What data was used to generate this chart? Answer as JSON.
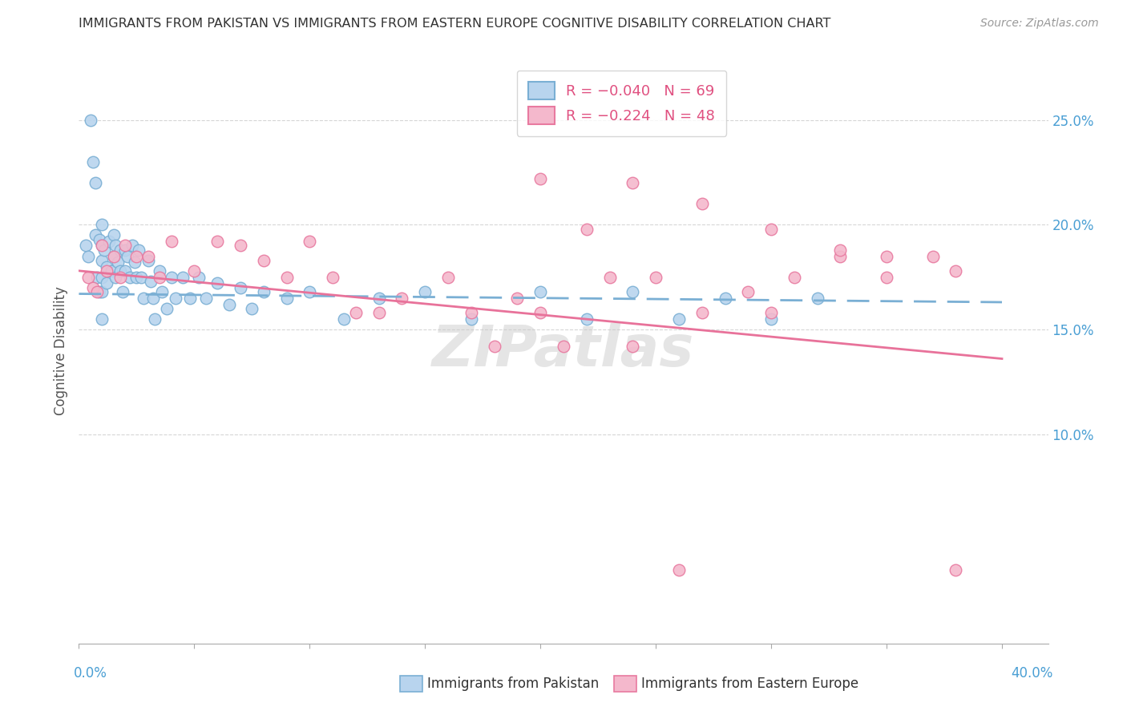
{
  "title": "IMMIGRANTS FROM PAKISTAN VS IMMIGRANTS FROM EASTERN EUROPE COGNITIVE DISABILITY CORRELATION CHART",
  "source": "Source: ZipAtlas.com",
  "ylabel": "Cognitive Disability",
  "xlim": [
    0.0,
    0.42
  ],
  "ylim": [
    0.0,
    0.28
  ],
  "y_ticks": [
    0.1,
    0.15,
    0.2,
    0.25
  ],
  "y_tick_labels": [
    "10.0%",
    "15.0%",
    "20.0%",
    "25.0%"
  ],
  "x_ticks": [
    0.0,
    0.05,
    0.1,
    0.15,
    0.2,
    0.25,
    0.3,
    0.35,
    0.4
  ],
  "pakistan_color": "#b8d4ee",
  "pakistan_edge_color": "#7aafd4",
  "eastern_europe_color": "#f4b8cc",
  "eastern_europe_edge_color": "#e87aa0",
  "trendline_pakistan_color": "#7aafd4",
  "trendline_eastern_color": "#e8729a",
  "watermark": "ZIPatlas",
  "pak_trendline_x": [
    0.0,
    0.4
  ],
  "pak_trendline_y": [
    0.167,
    0.163
  ],
  "east_trendline_x": [
    0.0,
    0.4
  ],
  "east_trendline_y": [
    0.178,
    0.136
  ],
  "pakistan_scatter_x": [
    0.003,
    0.004,
    0.005,
    0.006,
    0.007,
    0.007,
    0.008,
    0.009,
    0.009,
    0.01,
    0.01,
    0.01,
    0.01,
    0.01,
    0.01,
    0.011,
    0.012,
    0.012,
    0.013,
    0.014,
    0.015,
    0.015,
    0.016,
    0.016,
    0.017,
    0.018,
    0.018,
    0.019,
    0.02,
    0.02,
    0.021,
    0.022,
    0.023,
    0.024,
    0.025,
    0.026,
    0.027,
    0.028,
    0.03,
    0.031,
    0.032,
    0.033,
    0.035,
    0.036,
    0.038,
    0.04,
    0.042,
    0.045,
    0.048,
    0.052,
    0.055,
    0.06,
    0.065,
    0.07,
    0.075,
    0.08,
    0.09,
    0.1,
    0.115,
    0.13,
    0.15,
    0.17,
    0.2,
    0.22,
    0.24,
    0.26,
    0.28,
    0.3,
    0.32
  ],
  "pakistan_scatter_y": [
    0.19,
    0.185,
    0.25,
    0.23,
    0.22,
    0.195,
    0.175,
    0.193,
    0.168,
    0.2,
    0.19,
    0.183,
    0.175,
    0.168,
    0.155,
    0.188,
    0.18,
    0.172,
    0.192,
    0.178,
    0.195,
    0.185,
    0.175,
    0.19,
    0.182,
    0.188,
    0.178,
    0.168,
    0.188,
    0.178,
    0.185,
    0.175,
    0.19,
    0.182,
    0.175,
    0.188,
    0.175,
    0.165,
    0.183,
    0.173,
    0.165,
    0.155,
    0.178,
    0.168,
    0.16,
    0.175,
    0.165,
    0.175,
    0.165,
    0.175,
    0.165,
    0.172,
    0.162,
    0.17,
    0.16,
    0.168,
    0.165,
    0.168,
    0.155,
    0.165,
    0.168,
    0.155,
    0.168,
    0.155,
    0.168,
    0.155,
    0.165,
    0.155,
    0.165
  ],
  "eastern_scatter_x": [
    0.004,
    0.006,
    0.008,
    0.01,
    0.012,
    0.015,
    0.018,
    0.02,
    0.025,
    0.03,
    0.035,
    0.04,
    0.05,
    0.06,
    0.07,
    0.08,
    0.09,
    0.1,
    0.11,
    0.12,
    0.13,
    0.14,
    0.16,
    0.17,
    0.18,
    0.19,
    0.2,
    0.21,
    0.23,
    0.24,
    0.25,
    0.27,
    0.29,
    0.3,
    0.31,
    0.33,
    0.35,
    0.37,
    0.24,
    0.27,
    0.3,
    0.33,
    0.2,
    0.22,
    0.35,
    0.38,
    0.26,
    0.38
  ],
  "eastern_scatter_y": [
    0.175,
    0.17,
    0.168,
    0.19,
    0.178,
    0.185,
    0.175,
    0.19,
    0.185,
    0.185,
    0.175,
    0.192,
    0.178,
    0.192,
    0.19,
    0.183,
    0.175,
    0.192,
    0.175,
    0.158,
    0.158,
    0.165,
    0.175,
    0.158,
    0.142,
    0.165,
    0.158,
    0.142,
    0.175,
    0.142,
    0.175,
    0.158,
    0.168,
    0.158,
    0.175,
    0.185,
    0.175,
    0.185,
    0.22,
    0.21,
    0.198,
    0.188,
    0.222,
    0.198,
    0.185,
    0.178,
    0.035,
    0.035
  ]
}
